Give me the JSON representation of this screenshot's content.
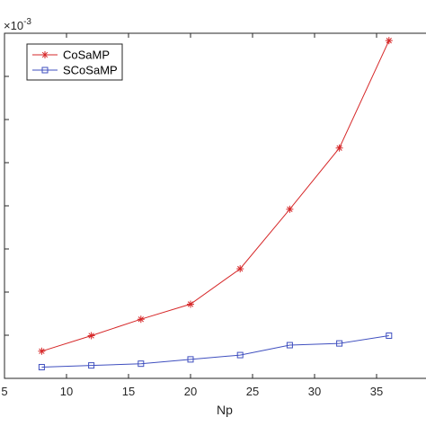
{
  "chart_data": {
    "type": "line",
    "title": "",
    "xlabel": "Np",
    "ylabel": "",
    "x": [
      8,
      12,
      16,
      20,
      24,
      28,
      32,
      36
    ],
    "xlim": [
      5,
      40
    ],
    "ylim": [
      0,
      0.008
    ],
    "x_ticks": [
      5,
      10,
      15,
      20,
      25,
      30,
      35
    ],
    "x_tick_labels": [
      "5",
      "10",
      "15",
      "20",
      "25",
      "30",
      "35"
    ],
    "y_ticks": [
      0,
      0.001,
      0.002,
      0.003,
      0.004,
      0.005,
      0.006,
      0.007,
      0.008
    ],
    "y_exponent_label": "×10",
    "y_exponent_power": "-3",
    "grid": false,
    "legend_position": "top-left",
    "series": [
      {
        "name": "CoSaMP",
        "color": "#d62728",
        "marker": "asterisk",
        "values": [
          0.00063,
          0.00099,
          0.00137,
          0.00172,
          0.00254,
          0.00392,
          0.00534,
          0.00783
        ]
      },
      {
        "name": "SCoSaMP",
        "color": "#3f4fbf",
        "marker": "square",
        "values": [
          0.00026,
          0.0003,
          0.00034,
          0.00044,
          0.00054,
          0.00077,
          0.00081,
          0.00099
        ]
      }
    ]
  }
}
